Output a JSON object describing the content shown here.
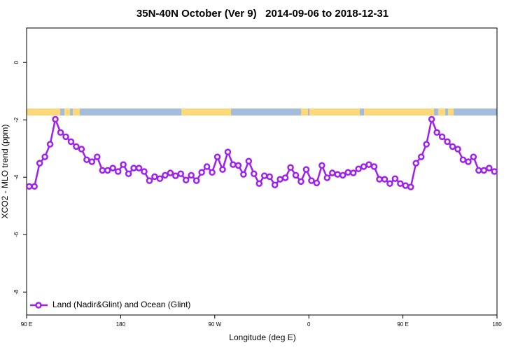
{
  "chart_data": {
    "type": "line",
    "title": "35N-40N October (Ver 9)   2014-09-06 to 2018-12-31",
    "x_label": "Longitude (deg E)",
    "y_label": "XCO2 - MLO trend (ppm)",
    "xlim": [
      90,
      540
    ],
    "xticks": [
      {
        "value": 90,
        "label": "90 E"
      },
      {
        "value": 180,
        "label": "180"
      },
      {
        "value": 270,
        "label": "90 W"
      },
      {
        "value": 360,
        "label": "0"
      },
      {
        "value": 450,
        "label": "90 E"
      },
      {
        "value": 540,
        "label": "180"
      }
    ],
    "ylim": [
      -8.8,
      1.2
    ],
    "yticks": [
      0,
      -2,
      -4,
      -6,
      -8
    ],
    "legend": "bottom-left",
    "x": [
      92.5,
      97.5,
      102.5,
      107.5,
      112.5,
      117.5,
      122.5,
      127.5,
      132.5,
      137.5,
      142.5,
      147.5,
      152.5,
      157.5,
      162.5,
      167.5,
      172.5,
      177.5,
      182.5,
      187.5,
      192.5,
      197.5,
      202.5,
      207.5,
      212.5,
      217.5,
      222.5,
      227.5,
      232.5,
      237.5,
      242.5,
      247.5,
      252.5,
      257.5,
      262.5,
      267.5,
      272.5,
      277.5,
      282.5,
      287.5,
      292.5,
      297.5,
      302.5,
      307.5,
      312.5,
      317.5,
      322.5,
      327.5,
      332.5,
      337.5,
      342.5,
      347.5,
      352.5,
      357.5,
      362.5,
      367.5,
      372.5,
      377.5,
      382.5,
      387.5,
      392.5,
      397.5,
      402.5,
      407.5,
      412.5,
      417.5,
      422.5,
      427.5,
      432.5,
      437.5,
      442.5,
      447.5,
      452.5,
      457.5,
      462.5,
      467.5,
      472.5,
      477.5,
      482.5,
      487.5,
      492.5,
      497.5,
      502.5,
      507.5,
      512.5,
      517.5,
      522.5,
      527.5,
      532.5,
      537.5
    ],
    "series": [
      {
        "name": "Land (Nadir&Glint) and Ocean (Glint)",
        "color": "#a020f0",
        "values": [
          -4.32,
          -4.32,
          -3.51,
          -3.29,
          -2.85,
          -1.98,
          -2.44,
          -2.59,
          -2.76,
          -2.93,
          -3.02,
          -3.39,
          -3.46,
          -3.29,
          -3.76,
          -3.76,
          -3.68,
          -3.8,
          -3.56,
          -3.88,
          -3.68,
          -3.68,
          -3.8,
          -4.12,
          -3.98,
          -4.05,
          -3.93,
          -3.85,
          -3.95,
          -3.88,
          -4.1,
          -3.93,
          -4.12,
          -3.83,
          -3.63,
          -3.83,
          -3.29,
          -3.73,
          -3.12,
          -3.56,
          -3.59,
          -3.9,
          -3.44,
          -3.88,
          -4.22,
          -3.95,
          -3.98,
          -4.27,
          -4.07,
          -4.02,
          -3.66,
          -3.93,
          -4.15,
          -3.73,
          -4.12,
          -4.2,
          -3.59,
          -4.02,
          -3.85,
          -3.9,
          -3.93,
          -3.83,
          -3.85,
          -3.71,
          -3.63,
          -3.56,
          -3.63,
          -4.07,
          -4.07,
          -4.22,
          -4.05,
          -4.22,
          -4.29,
          -4.34,
          -3.51,
          -3.29,
          -2.85,
          -1.98,
          -2.44,
          -2.59,
          -2.76,
          -2.93,
          -3.02,
          -3.39,
          -3.46,
          -3.29,
          -3.76,
          -3.76,
          -3.68,
          -3.8
        ]
      }
    ]
  }
}
